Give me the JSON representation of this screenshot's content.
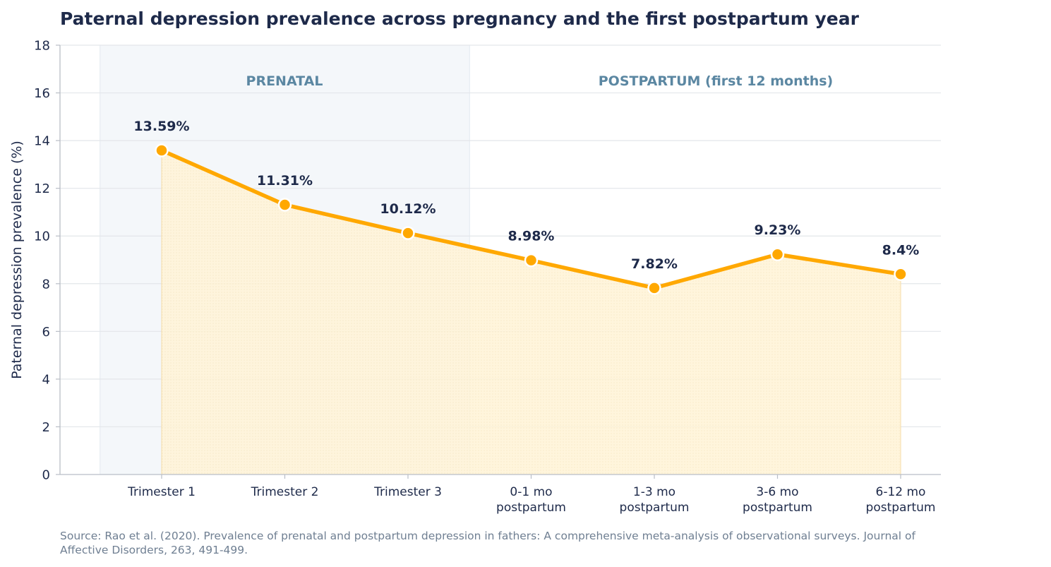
{
  "chart_data": {
    "type": "line",
    "title": "Paternal depression prevalence across pregnancy and the first postpartum year",
    "ylabel": "Paternal depression prevalence (%)",
    "xlabel": "",
    "ylim": [
      0,
      18
    ],
    "yticks": [
      "0",
      "2",
      "4",
      "6",
      "8",
      "10",
      "12",
      "14",
      "16",
      "18"
    ],
    "grid": "horizontal",
    "categories": [
      [
        "Trimester 1"
      ],
      [
        "Trimester 2"
      ],
      [
        "Trimester 3"
      ],
      [
        "0-1 mo",
        "postpartum"
      ],
      [
        "1-3 mo",
        "postpartum"
      ],
      [
        "3-6 mo",
        "postpartum"
      ],
      [
        "6-12 mo",
        "postpartum"
      ]
    ],
    "series": [
      {
        "values": [
          13.59,
          11.31,
          10.12,
          8.98,
          7.82,
          9.23,
          8.4
        ],
        "color": "#ffa800"
      }
    ],
    "data_labels": [
      "13.59%",
      "11.31%",
      "10.12%",
      "8.98%",
      "7.82%",
      "9.23%",
      "8.4%"
    ],
    "phases": [
      {
        "label": "PRENATAL"
      },
      {
        "label": "POSTPARTUM (first 12 months)"
      }
    ],
    "source_lines": [
      "Source: Rao et al. (2020). Prevalence of prenatal and postpartum depression in fathers: A comprehensive meta-analysis of observational surveys. Journal of",
      "Affective Disorders, 263, 491-499."
    ],
    "colors": {
      "line": "#ffa800",
      "area": "#fff3d6",
      "prenatal_band": "#f4f7fa",
      "text": "#1e2a4a",
      "phase_text": "#5b87a2",
      "source_text": "#6f7f92",
      "grid": "#e3e6ea"
    }
  }
}
